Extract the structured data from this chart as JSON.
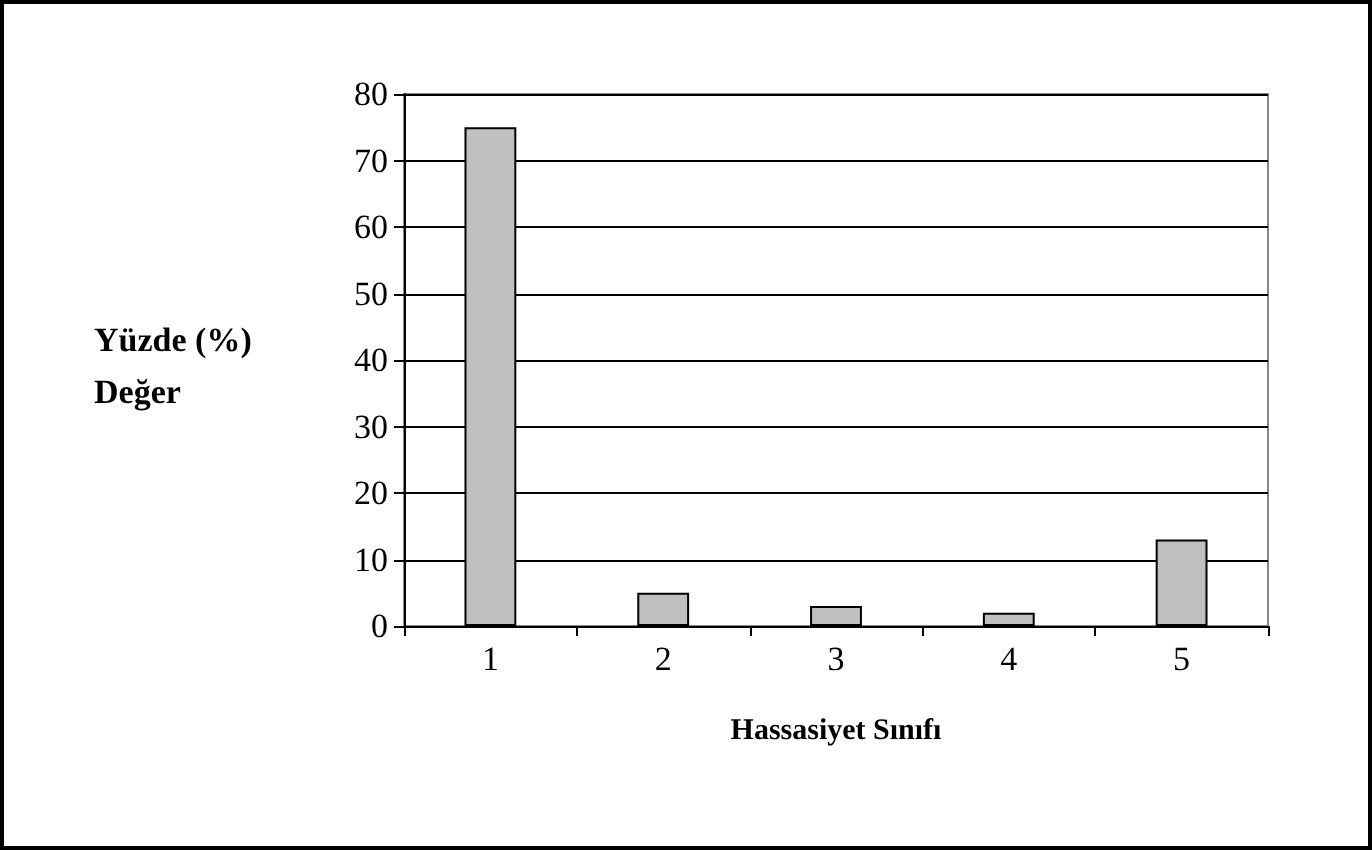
{
  "chart_data": {
    "type": "bar",
    "xlabel": "Hassasiyet Sınıfı",
    "ylabel": "Yüzde (%) Değer",
    "categories": [
      "1",
      "2",
      "3",
      "4",
      "5"
    ],
    "values": [
      75,
      5,
      3,
      2,
      13
    ],
    "color": "#c0c0c0",
    "ylim": [
      0,
      80
    ],
    "yticks": [
      0,
      10,
      20,
      30,
      40,
      50,
      60,
      70,
      80
    ],
    "grid": "y"
  }
}
